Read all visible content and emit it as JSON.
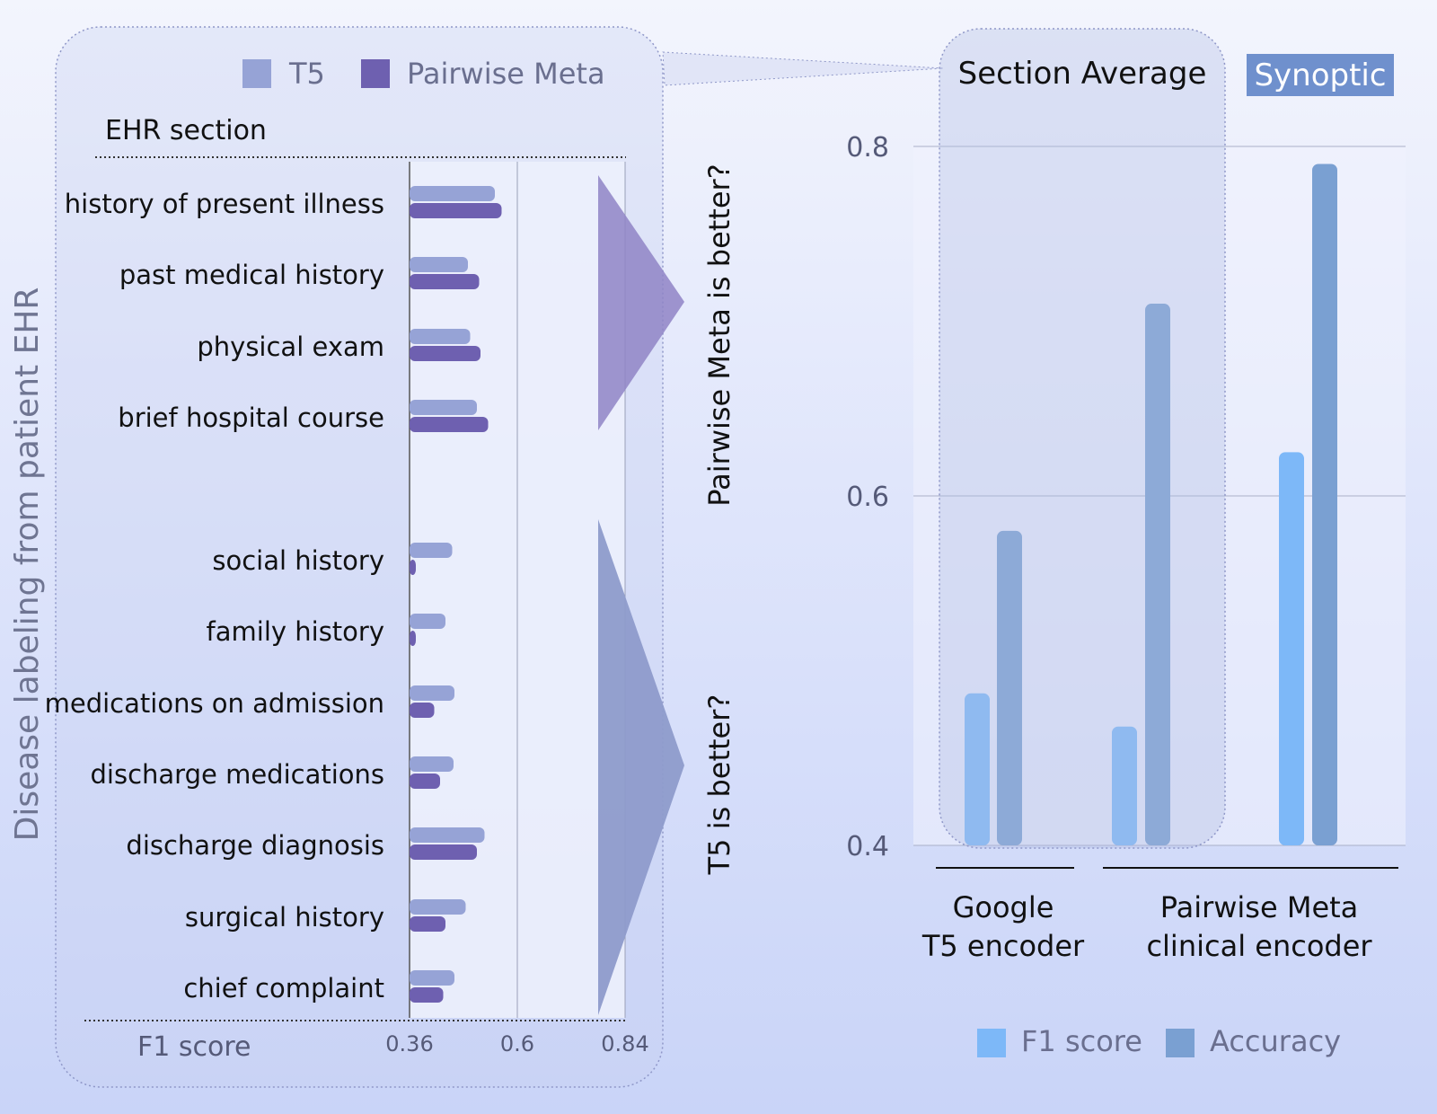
{
  "side_label": "Disease labeling from patient EHR",
  "left_chart": {
    "type": "bar",
    "orientation": "horizontal",
    "section_header": "EHR section",
    "xlabel": "F1 score",
    "xlim": [
      0.36,
      0.84
    ],
    "xticks": [
      "0.36",
      "0.6",
      "0.84"
    ],
    "legend": [
      {
        "label": "T5",
        "color": "#96a3d6"
      },
      {
        "label": "Pairwise Meta",
        "color": "#6e60b0"
      }
    ],
    "categories": [
      "history of present illness",
      "past medical history",
      "physical exam",
      "brief hospital course",
      "social history",
      "family history",
      "medications on admission",
      "discharge medications",
      "discharge diagnosis",
      "surgical history",
      "chief complaint"
    ],
    "series": [
      {
        "name": "T5",
        "values": [
          0.55,
          0.49,
          0.495,
          0.51,
          0.455,
          0.44,
          0.46,
          0.458,
          0.527,
          0.485,
          0.46
        ]
      },
      {
        "name": "Pairwise Meta",
        "values": [
          0.565,
          0.515,
          0.518,
          0.535,
          0.365,
          0.365,
          0.415,
          0.428,
          0.51,
          0.44,
          0.435
        ]
      }
    ]
  },
  "annotations": {
    "upper": "Pairwise Meta is better?",
    "lower": "T5 is better?"
  },
  "right_chart": {
    "type": "bar",
    "highlight_label": "Section Average",
    "badge": "Synoptic",
    "ylim": [
      0.4,
      0.8
    ],
    "yticks": [
      "0.8",
      "0.6",
      "0.4"
    ],
    "grid": true,
    "groups": [
      {
        "lines": [
          "Google",
          "T5 encoder"
        ]
      },
      {
        "lines": [
          "Pairwise Meta",
          "clinical encoder"
        ]
      }
    ],
    "bars": [
      {
        "group": 0,
        "series": "F1 score",
        "value": 0.487
      },
      {
        "group": 0,
        "series": "Accuracy",
        "value": 0.58
      },
      {
        "group": 1,
        "series": "F1 score",
        "value": 0.468
      },
      {
        "group": 1,
        "series": "Accuracy",
        "value": 0.71
      },
      {
        "group": 1,
        "series": "F1 score",
        "value": 0.625
      },
      {
        "group": 1,
        "series": "Accuracy",
        "value": 0.79
      }
    ],
    "legend": [
      {
        "label": "F1 score",
        "color": "#7db8f8"
      },
      {
        "label": "Accuracy",
        "color": "#7aa0d2"
      }
    ]
  }
}
